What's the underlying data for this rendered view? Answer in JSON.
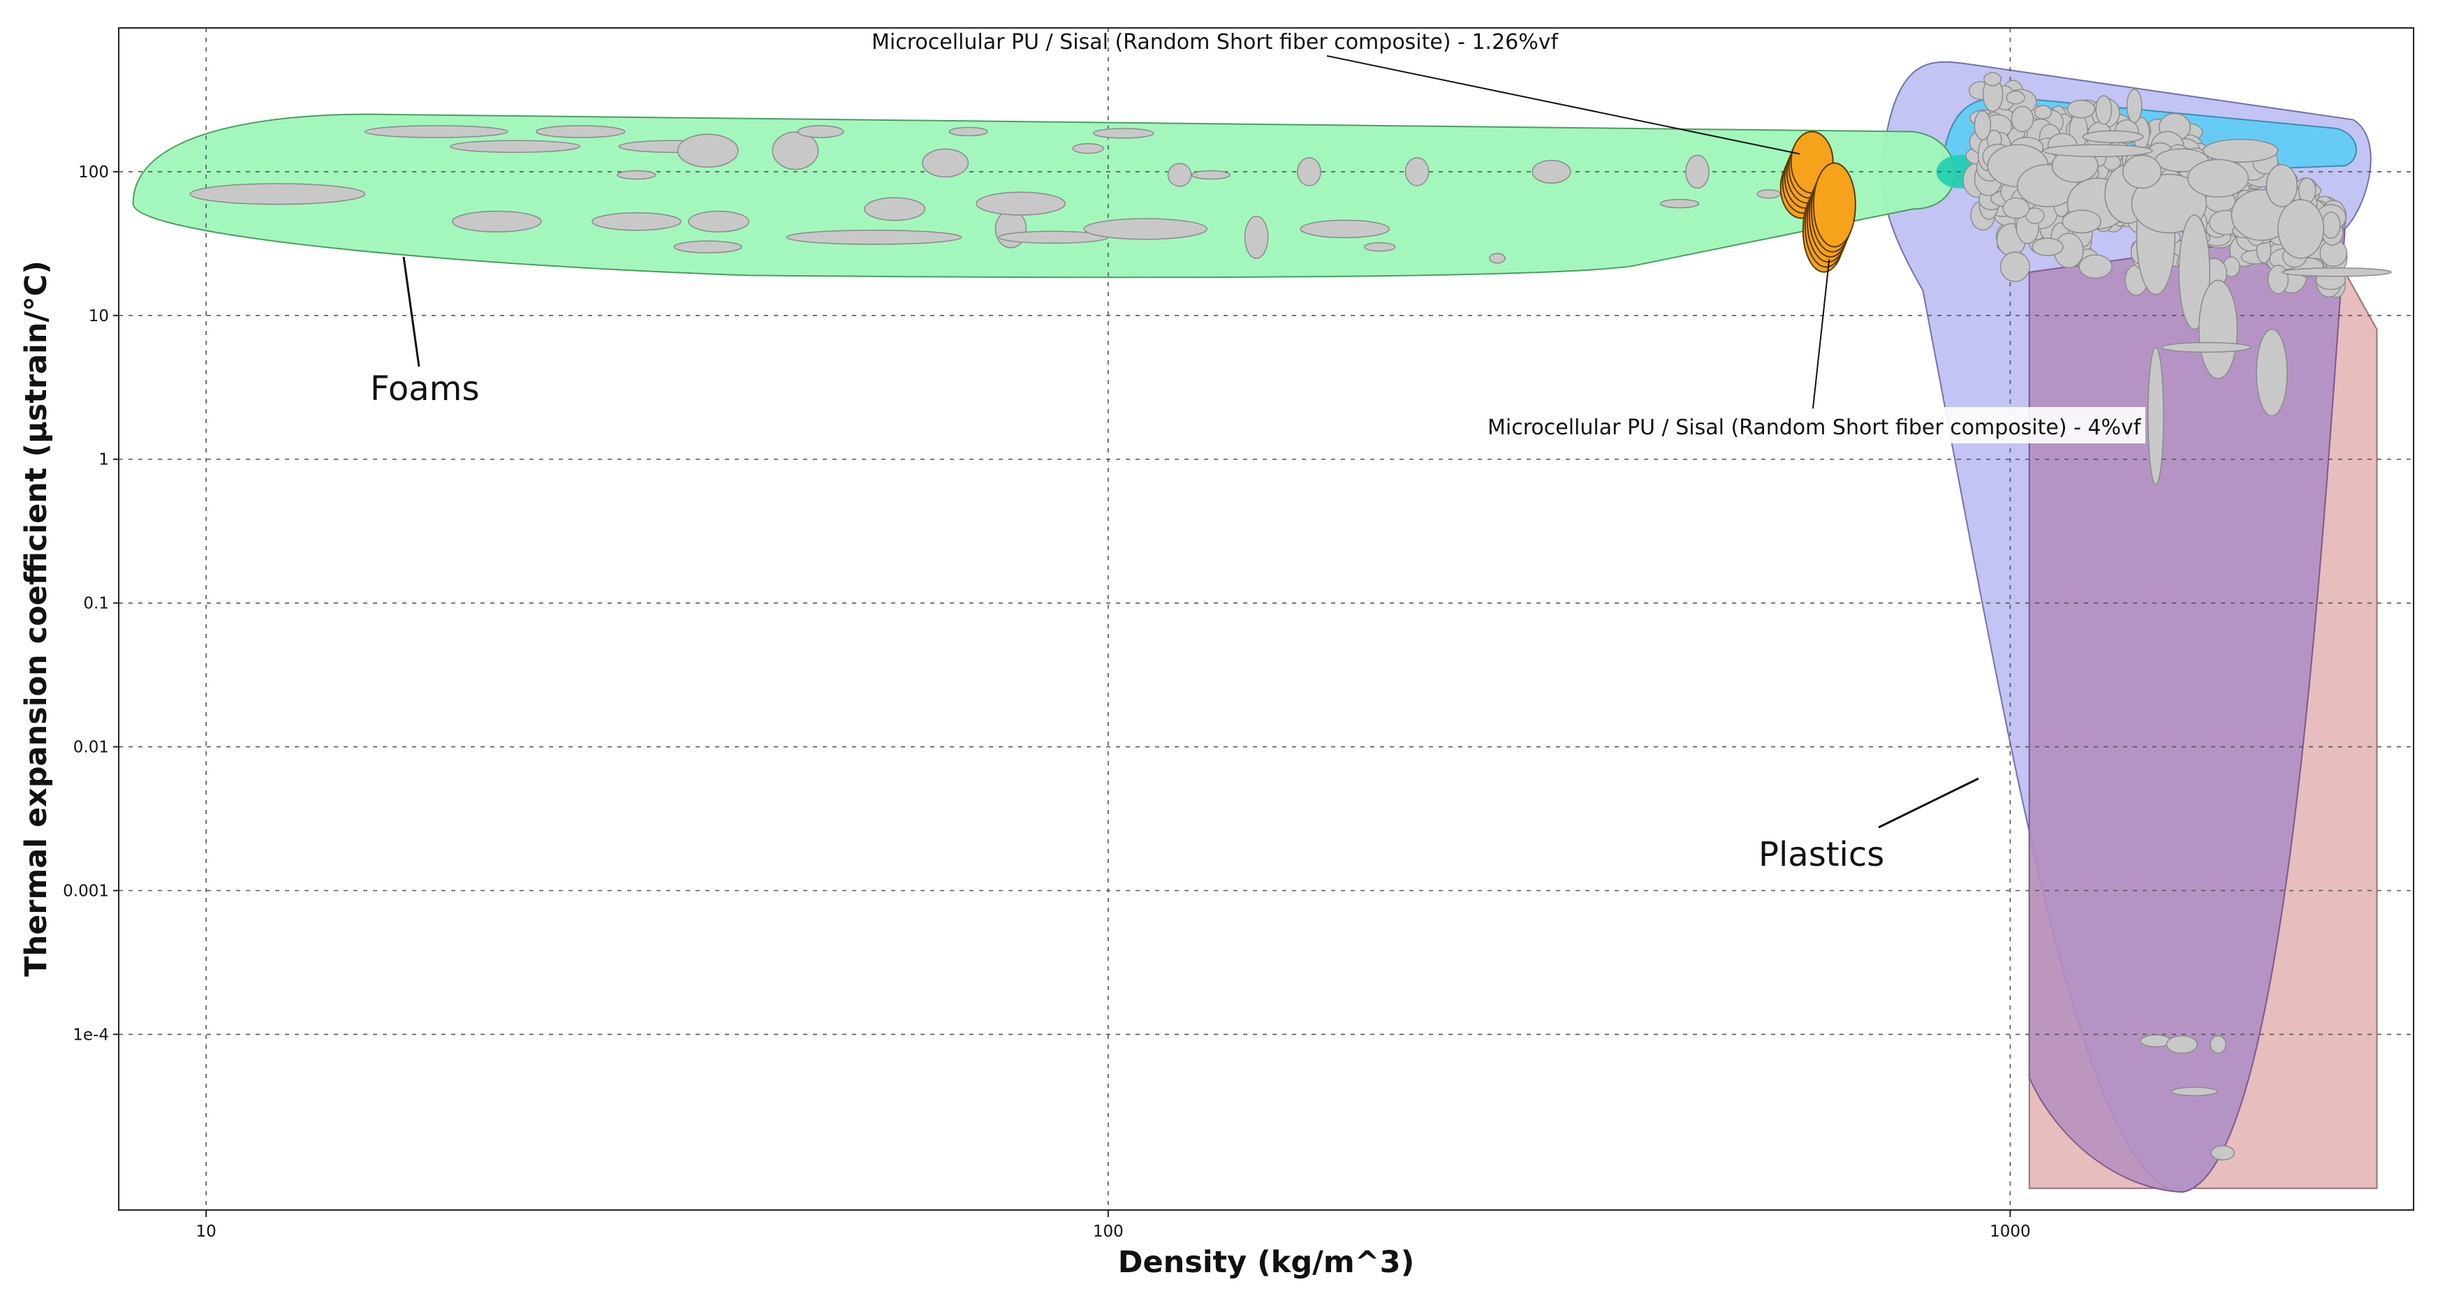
{
  "chart_data": {
    "type": "scatter",
    "title": "",
    "xlabel": "Density (kg/m^3)",
    "ylabel": "Thermal expansion coefficient (µstrain/°C)",
    "xscale": "log",
    "yscale": "log",
    "xlim": [
      8,
      2800
    ],
    "ylim": [
      6e-06,
      1000
    ],
    "grid": true,
    "x_ticks": [
      {
        "value": 10,
        "label": "10"
      },
      {
        "value": 100,
        "label": "100"
      },
      {
        "value": 1000,
        "label": "1000"
      }
    ],
    "y_ticks": [
      {
        "value": 100,
        "label": "100"
      },
      {
        "value": 10,
        "label": "10"
      },
      {
        "value": 1,
        "label": "1"
      },
      {
        "value": 0.1,
        "label": "0.1"
      },
      {
        "value": 0.01,
        "label": "0.01"
      },
      {
        "value": 0.001,
        "label": "0.001"
      },
      {
        "value": 0.0001,
        "label": "1e-4"
      }
    ],
    "colors": {
      "foams_envelope": "#9ef7b8",
      "plastics_envelope": "#a9a9f0",
      "cyan_envelope": "#5ccdf5",
      "pink_envelope": "#e3b2b2",
      "purple_overlap": "#b48fc0",
      "material_bubble": "#c8c8c8",
      "highlight": "#f7a21b"
    },
    "regions": [
      {
        "name": "Foams",
        "label": "Foams"
      },
      {
        "name": "Plastics",
        "label": "Plastics"
      }
    ],
    "highlighted_series": [
      {
        "name": "Microcellular PU / Sisal (Random Short fiber composite) - 1.26%vf",
        "x": 595,
        "y": 95
      },
      {
        "name": "Microcellular PU / Sisal (Random Short fiber composite) - 4%vf",
        "x": 630,
        "y": 48
      }
    ],
    "annotations": [
      "Microcellular PU / Sisal (Random Short fiber composite) - 1.26%vf",
      "Microcellular PU / Sisal (Random Short fiber composite) - 4%vf",
      "Foams",
      "Plastics"
    ],
    "foam_points": [
      {
        "x": 12,
        "y": 70,
        "rx": 1.25,
        "ry": 1.18
      },
      {
        "x": 21,
        "y": 45,
        "rx": 1.12,
        "ry": 1.18
      },
      {
        "x": 18,
        "y": 190,
        "rx": 1.2,
        "ry": 1.1
      },
      {
        "x": 22,
        "y": 150,
        "rx": 1.18,
        "ry": 1.1
      },
      {
        "x": 26,
        "y": 190,
        "rx": 1.12,
        "ry": 1.1
      },
      {
        "x": 30,
        "y": 45,
        "rx": 1.12,
        "ry": 1.15
      },
      {
        "x": 33,
        "y": 150,
        "rx": 1.15,
        "ry": 1.1
      },
      {
        "x": 36,
        "y": 140,
        "rx": 1.08,
        "ry": 1.3
      },
      {
        "x": 37,
        "y": 45,
        "rx": 1.08,
        "ry": 1.18
      },
      {
        "x": 36,
        "y": 30,
        "rx": 1.09,
        "ry": 1.1
      },
      {
        "x": 45,
        "y": 140,
        "rx": 1.06,
        "ry": 1.35
      },
      {
        "x": 48,
        "y": 190,
        "rx": 1.06,
        "ry": 1.1
      },
      {
        "x": 55,
        "y": 35,
        "rx": 1.25,
        "ry": 1.12
      },
      {
        "x": 58,
        "y": 55,
        "rx": 1.08,
        "ry": 1.2
      },
      {
        "x": 66,
        "y": 115,
        "rx": 1.06,
        "ry": 1.25
      },
      {
        "x": 78,
        "y": 40,
        "rx": 1.04,
        "ry": 1.35
      },
      {
        "x": 87,
        "y": 35,
        "rx": 1.15,
        "ry": 1.1
      },
      {
        "x": 104,
        "y": 185,
        "rx": 1.08,
        "ry": 1.08
      },
      {
        "x": 110,
        "y": 40,
        "rx": 1.17,
        "ry": 1.18
      },
      {
        "x": 146,
        "y": 35,
        "rx": 1.03,
        "ry": 1.4
      },
      {
        "x": 167,
        "y": 100,
        "rx": 1.03,
        "ry": 1.25
      },
      {
        "x": 183,
        "y": 40,
        "rx": 1.12,
        "ry": 1.15
      },
      {
        "x": 220,
        "y": 100,
        "rx": 1.03,
        "ry": 1.25
      },
      {
        "x": 270,
        "y": 25,
        "rx": 1.02,
        "ry": 1.08
      },
      {
        "x": 310,
        "y": 100,
        "rx": 1.05,
        "ry": 1.2
      },
      {
        "x": 450,
        "y": 100,
        "rx": 1.03,
        "ry": 1.3
      },
      {
        "x": 430,
        "y": 60,
        "rx": 1.05,
        "ry": 1.05
      },
      {
        "x": 540,
        "y": 70,
        "rx": 1.03,
        "ry": 1.05
      },
      {
        "x": 30,
        "y": 95,
        "rx": 1.05,
        "ry": 1.05
      },
      {
        "x": 95,
        "y": 145,
        "rx": 1.04,
        "ry": 1.08
      },
      {
        "x": 120,
        "y": 95,
        "rx": 1.03,
        "ry": 1.2
      },
      {
        "x": 70,
        "y": 190,
        "rx": 1.05,
        "ry": 1.05
      },
      {
        "x": 130,
        "y": 95,
        "rx": 1.05,
        "ry": 1.05
      },
      {
        "x": 200,
        "y": 30,
        "rx": 1.04,
        "ry": 1.05
      },
      {
        "x": 80,
        "y": 60,
        "rx": 1.12,
        "ry": 1.2
      }
    ],
    "plastic_points": [
      {
        "x": 1020,
        "y": 110,
        "rx": 1.08,
        "ry": 1.4
      },
      {
        "x": 1100,
        "y": 80,
        "rx": 1.08,
        "ry": 1.4
      },
      {
        "x": 1180,
        "y": 110,
        "rx": 1.06,
        "ry": 1.3
      },
      {
        "x": 1250,
        "y": 60,
        "rx": 1.08,
        "ry": 1.5
      },
      {
        "x": 1350,
        "y": 70,
        "rx": 1.06,
        "ry": 1.6
      },
      {
        "x": 1450,
        "y": 35,
        "rx": 1.05,
        "ry": 2.5
      },
      {
        "x": 1500,
        "y": 60,
        "rx": 1.1,
        "ry": 1.6
      },
      {
        "x": 1600,
        "y": 20,
        "rx": 1.04,
        "ry": 2.5
      },
      {
        "x": 1700,
        "y": 8,
        "rx": 1.05,
        "ry": 2.2
      },
      {
        "x": 1450,
        "y": 2,
        "rx": 1.02,
        "ry": 3.0
      },
      {
        "x": 1900,
        "y": 50,
        "rx": 1.08,
        "ry": 1.5
      },
      {
        "x": 2100,
        "y": 40,
        "rx": 1.06,
        "ry": 1.6
      },
      {
        "x": 1800,
        "y": 140,
        "rx": 1.1,
        "ry": 1.2
      },
      {
        "x": 1950,
        "y": 4,
        "rx": 1.04,
        "ry": 2.0
      },
      {
        "x": 2300,
        "y": 20,
        "rx": 1.15,
        "ry": 1.05
      },
      {
        "x": 1650,
        "y": 6,
        "rx": 1.12,
        "ry": 1.08
      },
      {
        "x": 1300,
        "y": 175,
        "rx": 1.08,
        "ry": 1.1
      },
      {
        "x": 1550,
        "y": 120,
        "rx": 1.07,
        "ry": 1.2
      },
      {
        "x": 1400,
        "y": 100,
        "rx": 1.05,
        "ry": 1.3
      },
      {
        "x": 2000,
        "y": 80,
        "rx": 1.04,
        "ry": 1.4
      },
      {
        "x": 1200,
        "y": 45,
        "rx": 1.05,
        "ry": 1.2
      },
      {
        "x": 1100,
        "y": 30,
        "rx": 1.04,
        "ry": 1.15
      },
      {
        "x": 1250,
        "y": 140,
        "rx": 1.15,
        "ry": 1.1
      },
      {
        "x": 1700,
        "y": 90,
        "rx": 1.08,
        "ry": 1.35
      },
      {
        "x": 1450,
        "y": 9e-05,
        "rx": 1.04,
        "ry": 1.1
      },
      {
        "x": 1550,
        "y": 8.5e-05,
        "rx": 1.04,
        "ry": 1.15
      },
      {
        "x": 1700,
        "y": 8.5e-05,
        "rx": 1.02,
        "ry": 1.15
      },
      {
        "x": 1600,
        "y": 4e-05,
        "rx": 1.06,
        "ry": 1.05
      },
      {
        "x": 1720,
        "y": 1.5e-05,
        "rx": 1.03,
        "ry": 1.12
      }
    ]
  }
}
